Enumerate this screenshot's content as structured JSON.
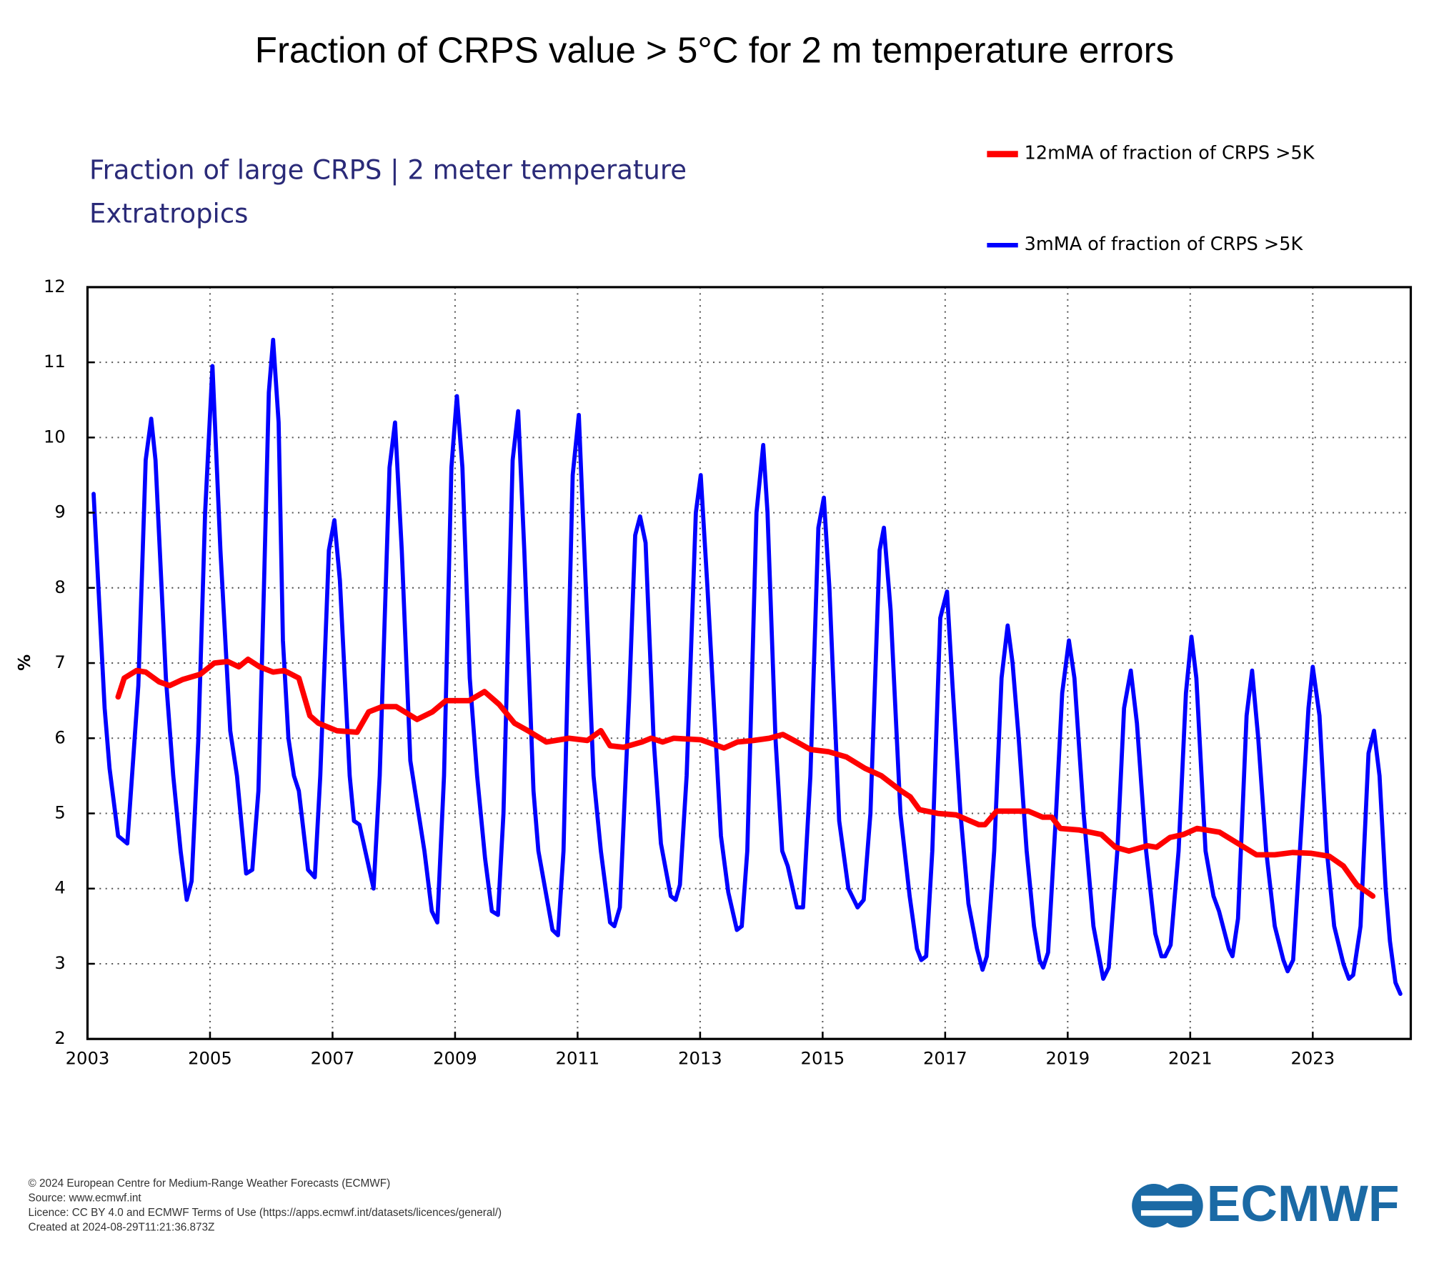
{
  "page_title": "Fraction of CRPS value > 5°C for 2 m temperature errors",
  "chart_data": {
    "type": "line",
    "title": "Fraction of large CRPS | 2 meter temperature",
    "subtitle": "Extratropics",
    "y_label": "%",
    "xlim": [
      2003,
      2024.6
    ],
    "xticks": [
      2003,
      2005,
      2007,
      2009,
      2011,
      2013,
      2015,
      2017,
      2019,
      2021,
      2023
    ],
    "ylim": [
      2,
      12
    ],
    "yticks": [
      2,
      3,
      4,
      5,
      6,
      7,
      8,
      9,
      10,
      11,
      12
    ],
    "grid": true,
    "legend": "top-right",
    "series": [
      {
        "name": "12mMA of fraction of CRPS >5K",
        "color": "#ff0000",
        "x": [
          2003.5,
          2003.6,
          2003.8,
          2003.95,
          2004.17,
          2004.34,
          2004.55,
          2004.84,
          2005.07,
          2005.29,
          2005.47,
          2005.62,
          2005.81,
          2006.03,
          2006.21,
          2006.45,
          2006.63,
          2006.77,
          2007.07,
          2007.4,
          2007.59,
          2007.81,
          2008.04,
          2008.38,
          2008.63,
          2008.85,
          2009.23,
          2009.48,
          2009.72,
          2009.97,
          2010.19,
          2010.49,
          2010.86,
          2011.16,
          2011.38,
          2011.53,
          2011.75,
          2012.05,
          2012.2,
          2012.39,
          2012.57,
          2013.01,
          2013.39,
          2013.61,
          2013.87,
          2014.13,
          2014.35,
          2014.58,
          2014.8,
          2015.1,
          2015.39,
          2015.69,
          2015.96,
          2016.28,
          2016.43,
          2016.58,
          2016.88,
          2017.18,
          2017.55,
          2017.65,
          2017.84,
          2018.36,
          2018.59,
          2018.74,
          2018.88,
          2019.18,
          2019.55,
          2019.78,
          2020.0,
          2020.3,
          2020.45,
          2020.67,
          2020.89,
          2021.11,
          2021.48,
          2021.78,
          2022.08,
          2022.38,
          2022.67,
          2022.97,
          2023.27,
          2023.5,
          2023.72,
          2023.98
        ],
        "values": [
          6.55,
          6.8,
          6.9,
          6.88,
          6.75,
          6.7,
          6.78,
          6.85,
          7.0,
          7.02,
          6.95,
          7.05,
          6.95,
          6.88,
          6.9,
          6.8,
          6.3,
          6.2,
          6.1,
          6.08,
          6.35,
          6.42,
          6.42,
          6.25,
          6.35,
          6.5,
          6.5,
          6.62,
          6.45,
          6.2,
          6.1,
          5.95,
          6.0,
          5.97,
          6.1,
          5.9,
          5.88,
          5.95,
          6.0,
          5.95,
          6.0,
          5.98,
          5.87,
          5.95,
          5.97,
          6.0,
          6.05,
          5.95,
          5.85,
          5.82,
          5.75,
          5.6,
          5.5,
          5.3,
          5.22,
          5.05,
          5.0,
          4.98,
          4.85,
          4.85,
          5.03,
          5.03,
          4.95,
          4.95,
          4.8,
          4.78,
          4.72,
          4.55,
          4.5,
          4.57,
          4.55,
          4.68,
          4.72,
          4.8,
          4.75,
          4.6,
          4.45,
          4.45,
          4.48,
          4.47,
          4.43,
          4.3,
          4.05,
          3.9
        ]
      },
      {
        "name": "3mMA of fraction of CRPS >5K",
        "color": "#0000ff",
        "x": [
          2003.1,
          2003.28,
          2003.36,
          2003.5,
          2003.65,
          2003.83,
          2003.95,
          2004.04,
          2004.11,
          2004.28,
          2004.4,
          2004.52,
          2004.62,
          2004.7,
          2004.81,
          2004.92,
          2005.04,
          2005.17,
          2005.33,
          2005.44,
          2005.59,
          2005.69,
          2005.79,
          2005.88,
          2005.96,
          2006.03,
          2006.12,
          2006.19,
          2006.28,
          2006.37,
          2006.45,
          2006.6,
          2006.71,
          2006.8,
          2006.94,
          2007.03,
          2007.12,
          2007.28,
          2007.35,
          2007.44,
          2007.67,
          2007.77,
          2007.93,
          2008.02,
          2008.13,
          2008.27,
          2008.5,
          2008.62,
          2008.71,
          2008.82,
          2008.94,
          2009.03,
          2009.12,
          2009.24,
          2009.36,
          2009.49,
          2009.6,
          2009.7,
          2009.79,
          2009.94,
          2010.03,
          2010.13,
          2010.28,
          2010.36,
          2010.47,
          2010.59,
          2010.68,
          2010.77,
          2010.92,
          2011.02,
          2011.11,
          2011.26,
          2011.38,
          2011.53,
          2011.6,
          2011.69,
          2011.84,
          2011.94,
          2012.02,
          2012.11,
          2012.24,
          2012.36,
          2012.52,
          2012.6,
          2012.67,
          2012.78,
          2012.93,
          2013.01,
          2013.12,
          2013.34,
          2013.46,
          2013.6,
          2013.68,
          2013.77,
          2013.92,
          2014.03,
          2014.1,
          2014.23,
          2014.34,
          2014.43,
          2014.58,
          2014.68,
          2014.8,
          2014.93,
          2015.02,
          2015.11,
          2015.27,
          2015.42,
          2015.57,
          2015.67,
          2015.78,
          2015.93,
          2016.0,
          2016.11,
          2016.27,
          2016.42,
          2016.54,
          2016.61,
          2016.69,
          2016.79,
          2016.92,
          2017.03,
          2017.12,
          2017.25,
          2017.38,
          2017.52,
          2017.61,
          2017.68,
          2017.8,
          2017.92,
          2018.02,
          2018.1,
          2018.2,
          2018.33,
          2018.45,
          2018.54,
          2018.6,
          2018.68,
          2018.81,
          2018.91,
          2019.02,
          2019.11,
          2019.26,
          2019.42,
          2019.58,
          2019.67,
          2019.81,
          2019.92,
          2020.03,
          2020.13,
          2020.28,
          2020.43,
          2020.53,
          2020.59,
          2020.68,
          2020.81,
          2020.93,
          2021.02,
          2021.1,
          2021.25,
          2021.38,
          2021.47,
          2021.63,
          2021.69,
          2021.78,
          2021.92,
          2022.01,
          2022.11,
          2022.24,
          2022.38,
          2022.52,
          2022.59,
          2022.68,
          2022.79,
          2022.93,
          2023.0,
          2023.11,
          2023.23,
          2023.35,
          2023.5,
          2023.59,
          2023.66,
          2023.78,
          2023.91,
          2024.0,
          2024.09,
          2024.19,
          2024.26,
          2024.35,
          2024.43
        ],
        "values": [
          9.25,
          6.4,
          5.6,
          4.7,
          4.6,
          6.7,
          9.7,
          10.25,
          9.7,
          6.8,
          5.5,
          4.5,
          3.85,
          4.1,
          6.0,
          9.0,
          10.95,
          8.5,
          6.1,
          5.5,
          4.2,
          4.25,
          5.3,
          8.0,
          10.6,
          11.3,
          10.2,
          7.3,
          6.0,
          5.5,
          5.3,
          4.25,
          4.15,
          5.5,
          8.5,
          8.9,
          8.1,
          5.5,
          4.9,
          4.85,
          4.0,
          5.5,
          9.6,
          10.2,
          8.5,
          5.7,
          4.5,
          3.7,
          3.55,
          5.5,
          9.6,
          10.55,
          9.6,
          6.8,
          5.5,
          4.4,
          3.7,
          3.65,
          5.0,
          9.7,
          10.35,
          8.5,
          5.3,
          4.5,
          4.0,
          3.45,
          3.38,
          4.5,
          9.5,
          10.3,
          8.5,
          5.5,
          4.5,
          3.55,
          3.5,
          3.75,
          6.5,
          8.7,
          8.95,
          8.6,
          6.0,
          4.6,
          3.9,
          3.85,
          4.05,
          5.5,
          9.0,
          9.5,
          8.0,
          4.7,
          3.95,
          3.45,
          3.5,
          4.5,
          9.0,
          9.9,
          9.0,
          6.0,
          4.5,
          4.3,
          3.75,
          3.75,
          5.5,
          8.8,
          9.2,
          8.0,
          4.9,
          4.0,
          3.75,
          3.85,
          5.0,
          8.5,
          8.8,
          7.7,
          5.0,
          3.9,
          3.2,
          3.05,
          3.1,
          4.5,
          7.6,
          7.95,
          6.7,
          5.0,
          3.8,
          3.2,
          2.92,
          3.1,
          4.5,
          6.8,
          7.5,
          7.0,
          6.0,
          4.5,
          3.5,
          3.05,
          2.95,
          3.15,
          5.0,
          6.6,
          7.3,
          6.8,
          5.0,
          3.5,
          2.8,
          2.95,
          4.5,
          6.4,
          6.9,
          6.2,
          4.5,
          3.4,
          3.1,
          3.1,
          3.25,
          4.5,
          6.6,
          7.35,
          6.8,
          4.5,
          3.9,
          3.7,
          3.2,
          3.1,
          3.6,
          6.3,
          6.9,
          6.0,
          4.5,
          3.5,
          3.05,
          2.9,
          3.05,
          4.5,
          6.4,
          6.95,
          6.3,
          4.5,
          3.5,
          3.0,
          2.8,
          2.85,
          3.5,
          5.8,
          6.1,
          5.5,
          4.0,
          3.3,
          2.75,
          2.6
        ]
      }
    ]
  },
  "footer": [
    "© 2024 European Centre for Medium-Range Weather Forecasts (ECMWF)",
    "Source: www.ecmwf.int",
    "Licence: CC BY 4.0 and ECMWF Terms of Use (https://apps.ecmwf.int/datasets/licences/general/)",
    "Created at 2024-08-29T11:21:36.873Z"
  ],
  "logo": "ECMWF"
}
